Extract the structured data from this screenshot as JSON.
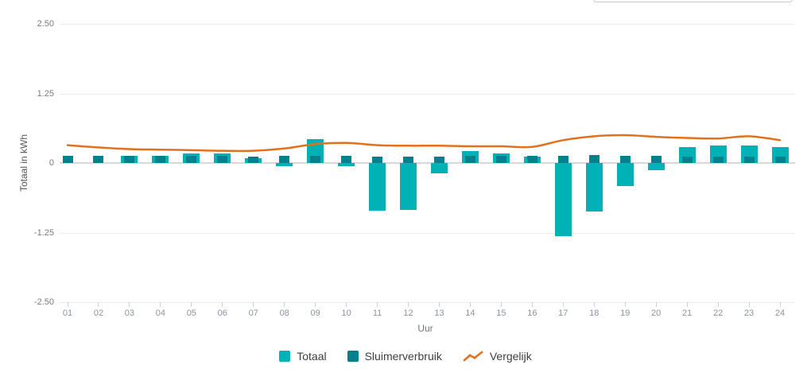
{
  "chart_data": {
    "type": "bar",
    "title": "",
    "xlabel": "Uur",
    "ylabel": "Totaal in kWh",
    "ylim": [
      -2.5,
      2.5
    ],
    "yticks": [
      2.5,
      1.25,
      0,
      -1.25,
      -2.5
    ],
    "ytick_labels": [
      "2.50",
      "1.25",
      "0",
      "-1.25",
      "-2.50"
    ],
    "grid": true,
    "legend_position": "bottom",
    "categories": [
      "01",
      "02",
      "03",
      "04",
      "05",
      "06",
      "07",
      "08",
      "09",
      "10",
      "11",
      "12",
      "13",
      "14",
      "15",
      "16",
      "17",
      "18",
      "19",
      "20",
      "21",
      "22",
      "23",
      "24"
    ],
    "series": [
      {
        "name": "Totaal",
        "type": "bar",
        "color": "#00b2b5",
        "values": [
          0,
          0,
          0.13,
          0.13,
          0.17,
          0.17,
          0.09,
          -0.06,
          0.43,
          -0.05,
          -0.86,
          -0.84,
          -0.19,
          0.21,
          0.17,
          0.11,
          -1.32,
          -0.87,
          -0.42,
          -0.13,
          0.28,
          0.32,
          0.32,
          0.29
        ]
      },
      {
        "name": "Sluimerverbruik",
        "type": "bar",
        "color": "#00818c",
        "values": [
          0.13,
          0.13,
          0.13,
          0.13,
          0.13,
          0.13,
          0.12,
          0.13,
          0.13,
          0.13,
          0.12,
          0.12,
          0.12,
          0.13,
          0.13,
          0.13,
          0.13,
          0.14,
          0.13,
          0.13,
          0.11,
          0.12,
          0.12,
          0.12
        ]
      },
      {
        "name": "Vergelijk",
        "type": "line",
        "color": "#e2711d",
        "values": [
          0.32,
          0.28,
          0.25,
          0.24,
          0.23,
          0.22,
          0.22,
          0.26,
          0.34,
          0.36,
          0.32,
          0.31,
          0.31,
          0.3,
          0.3,
          0.29,
          0.41,
          0.48,
          0.5,
          0.47,
          0.45,
          0.44,
          0.48,
          0.41
        ]
      }
    ]
  }
}
